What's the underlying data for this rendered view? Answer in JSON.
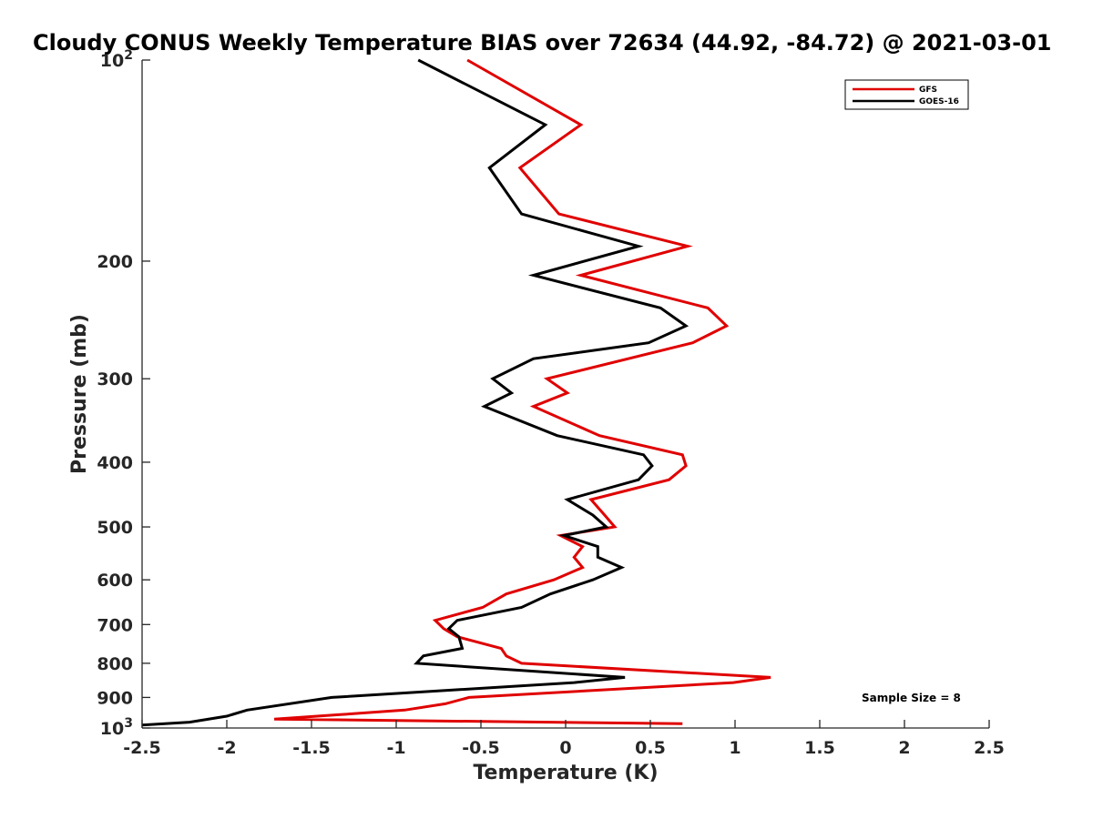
{
  "chart_data": {
    "type": "line",
    "title": "Cloudy CONUS Weekly Temperature BIAS over 72634 (44.92, -84.72) @ 2021-03-01",
    "xlabel": "Temperature (K)",
    "ylabel": "Pressure (mb)",
    "xlim": [
      -2.5,
      2.5
    ],
    "ylim": [
      100,
      1000
    ],
    "y_scale": "log",
    "y_reversed": true,
    "grid": false,
    "legend_position": "top-right",
    "x_ticks": [
      -2.5,
      -2,
      -1.5,
      -1,
      -0.5,
      0,
      0.5,
      1,
      1.5,
      2,
      2.5
    ],
    "x_tick_labels": [
      "-2.5",
      "-2",
      "-1.5",
      "-1",
      "-0.5",
      "0",
      "0.5",
      "1",
      "1.5",
      "2",
      "2.5"
    ],
    "y_ticks": [
      {
        "value": 100,
        "base": "10",
        "exp": "2"
      },
      {
        "value": 200,
        "label": "200"
      },
      {
        "value": 300,
        "label": "300"
      },
      {
        "value": 400,
        "label": "400"
      },
      {
        "value": 500,
        "label": "500"
      },
      {
        "value": 600,
        "label": "600"
      },
      {
        "value": 700,
        "label": "700"
      },
      {
        "value": 800,
        "label": "800"
      },
      {
        "value": 900,
        "label": "900"
      },
      {
        "value": 1000,
        "base": "10",
        "exp": "3"
      }
    ],
    "annotation": "Sample Size = 8",
    "series": [
      {
        "name": "GFS",
        "color": "#e00000",
        "points": [
          [
            -0.58,
            100
          ],
          [
            0.09,
            125
          ],
          [
            -0.27,
            145
          ],
          [
            -0.04,
            170
          ],
          [
            0.72,
            190
          ],
          [
            0.09,
            210
          ],
          [
            0.84,
            235
          ],
          [
            0.95,
            250
          ],
          [
            0.75,
            265
          ],
          [
            -0.11,
            300
          ],
          [
            0.01,
            315
          ],
          [
            -0.19,
            330
          ],
          [
            0.2,
            365
          ],
          [
            0.69,
            390
          ],
          [
            0.71,
            405
          ],
          [
            0.61,
            425
          ],
          [
            0.15,
            455
          ],
          [
            0.23,
            480
          ],
          [
            0.29,
            500
          ],
          [
            -0.03,
            515
          ],
          [
            0.1,
            535
          ],
          [
            0.05,
            555
          ],
          [
            0.1,
            575
          ],
          [
            -0.07,
            600
          ],
          [
            -0.35,
            630
          ],
          [
            -0.49,
            660
          ],
          [
            -0.77,
            690
          ],
          [
            -0.72,
            710
          ],
          [
            -0.64,
            730
          ],
          [
            -0.38,
            760
          ],
          [
            -0.35,
            780
          ],
          [
            -0.26,
            800
          ],
          [
            1.21,
            840
          ],
          [
            0.99,
            855
          ],
          [
            -0.57,
            900
          ],
          [
            -0.71,
            920
          ],
          [
            -0.95,
            940
          ],
          [
            -1.33,
            955
          ],
          [
            -1.72,
            970
          ],
          [
            0.69,
            985
          ]
        ]
      },
      {
        "name": "GOES-16",
        "color": "#000000",
        "points": [
          [
            -0.87,
            100
          ],
          [
            -0.12,
            125
          ],
          [
            -0.45,
            145
          ],
          [
            -0.26,
            170
          ],
          [
            0.43,
            190
          ],
          [
            -0.19,
            210
          ],
          [
            0.56,
            235
          ],
          [
            0.71,
            250
          ],
          [
            0.49,
            265
          ],
          [
            -0.19,
            280
          ],
          [
            -0.43,
            300
          ],
          [
            -0.32,
            315
          ],
          [
            -0.48,
            330
          ],
          [
            -0.05,
            365
          ],
          [
            0.46,
            390
          ],
          [
            0.51,
            405
          ],
          [
            0.43,
            425
          ],
          [
            0.01,
            455
          ],
          [
            0.16,
            480
          ],
          [
            0.24,
            500
          ],
          [
            -0.01,
            515
          ],
          [
            0.19,
            535
          ],
          [
            0.19,
            555
          ],
          [
            0.33,
            575
          ],
          [
            0.16,
            600
          ],
          [
            -0.09,
            630
          ],
          [
            -0.26,
            660
          ],
          [
            -0.64,
            690
          ],
          [
            -0.69,
            710
          ],
          [
            -0.63,
            730
          ],
          [
            -0.61,
            760
          ],
          [
            -0.84,
            780
          ],
          [
            -0.88,
            800
          ],
          [
            0.35,
            840
          ],
          [
            0.05,
            855
          ],
          [
            -1.38,
            900
          ],
          [
            -1.88,
            940
          ],
          [
            -2.0,
            960
          ],
          [
            -2.22,
            980
          ],
          [
            -2.5,
            990
          ]
        ]
      }
    ]
  }
}
